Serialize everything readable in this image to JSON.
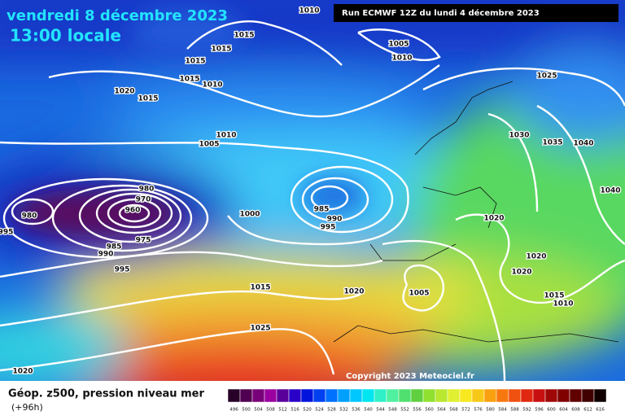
{
  "header": {
    "date": "vendredi 8 décembre 2023",
    "time": "13:00 locale",
    "run": "Run ECMWF 12Z du lundi 4 décembre 2023"
  },
  "copyright": "Copyright 2023 Meteociel.fr",
  "footer": {
    "title": "Géop. z500, pression niveau mer",
    "lead": "(+96h)"
  },
  "isobar_labels": [
    "1010",
    "1015",
    "1015",
    "1015",
    "1015",
    "1010",
    "1020",
    "1015",
    "1005",
    "1010",
    "1025",
    "1010",
    "1005",
    "1030",
    "1035",
    "1040",
    "1040",
    "980",
    "970",
    "960",
    "980",
    "995",
    "975",
    "985",
    "990",
    "995",
    "1000",
    "985",
    "990",
    "995",
    "1020",
    "1020",
    "1020",
    "1015",
    "1020",
    "1005",
    "1015",
    "1010",
    "1025",
    "1020"
  ],
  "colorbar": {
    "labels": [
      496,
      500,
      504,
      508,
      512,
      516,
      520,
      524,
      528,
      532,
      536,
      540,
      544,
      548,
      552,
      556,
      560,
      564,
      568,
      572,
      576,
      580,
      584,
      588,
      592,
      596,
      600,
      604,
      608,
      612,
      616
    ],
    "colors": [
      "#280028",
      "#500050",
      "#780078",
      "#9a00a0",
      "#5a009a",
      "#2a00c8",
      "#0014dc",
      "#0040f0",
      "#0070ff",
      "#00a0ff",
      "#00c8ff",
      "#00e6f0",
      "#30f0c8",
      "#50f0a0",
      "#50e070",
      "#60d040",
      "#90e030",
      "#b8e830",
      "#e0f030",
      "#f8e820",
      "#f8c818",
      "#f8a010",
      "#f87810",
      "#f05010",
      "#e02810",
      "#c81010",
      "#a00808",
      "#800000",
      "#600000",
      "#400000",
      "#100000"
    ]
  }
}
